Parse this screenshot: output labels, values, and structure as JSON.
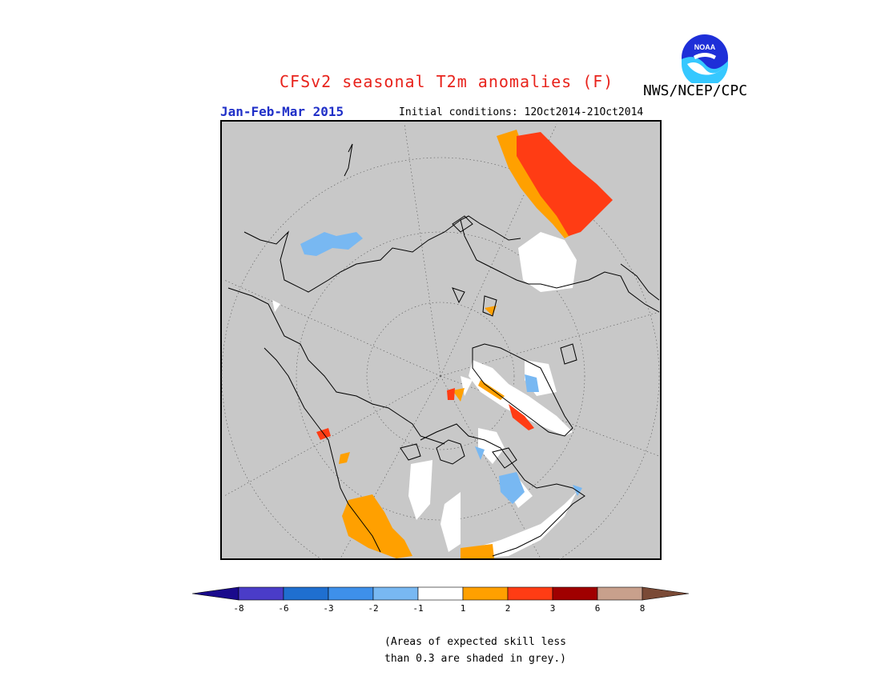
{
  "header": {
    "title": "CFSv2 seasonal T2m anomalies (F)",
    "organization": "NWS/NCEP/CPC",
    "logo_text": "NOAA",
    "season": "Jan-Feb-Mar 2015",
    "initial_conditions": "Initial conditions: 12Oct2014-21Oct2014"
  },
  "colorbar": {
    "labels": [
      "-8",
      "-6",
      "-3",
      "-2",
      "-1",
      "1",
      "2",
      "3",
      "6",
      "8"
    ],
    "colors": [
      "#1a0a8c",
      "#4a3cc8",
      "#1f6fd0",
      "#3e90ea",
      "#78b8f2",
      "#ffffff",
      "#ffa000",
      "#ff3c14",
      "#a00000",
      "#c8a08c",
      "#7a4a36"
    ]
  },
  "map": {
    "projection": "north-polar-stereographic",
    "background_color": "#c8c8c8",
    "low_skill_color": "#c8c8c8"
  },
  "note": {
    "line1": "(Areas of expected skill less",
    "line2": "than 0.3 are shaded in grey.)"
  }
}
